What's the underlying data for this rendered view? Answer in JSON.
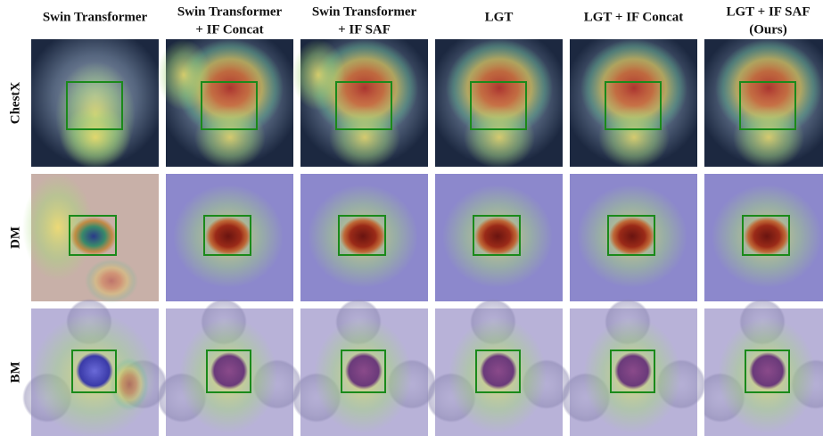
{
  "columns": [
    {
      "lines": [
        "Swin Transformer"
      ]
    },
    {
      "lines": [
        "Swin Transformer",
        "+ IF Concat"
      ]
    },
    {
      "lines": [
        "Swin Transformer",
        "+ IF SAF"
      ]
    },
    {
      "lines": [
        "LGT"
      ]
    },
    {
      "lines": [
        "LGT + IF Concat"
      ]
    },
    {
      "lines": [
        "LGT + IF SAF",
        "(Ours)"
      ]
    }
  ],
  "rows": [
    "ChestX",
    "DM",
    "BM"
  ]
}
